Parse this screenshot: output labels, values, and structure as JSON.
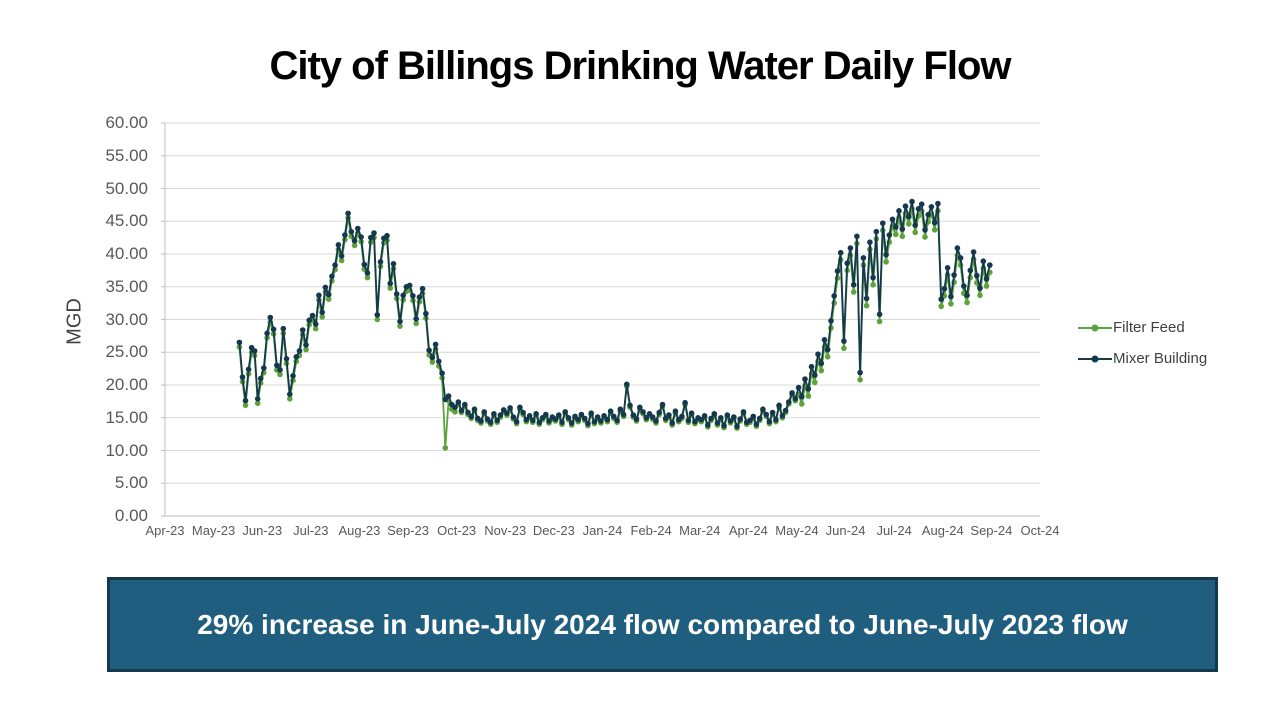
{
  "title": "City of Billings Drinking Water Daily Flow",
  "banner": {
    "text": "29% increase in June-July 2024 flow compared to June-July 2023 flow",
    "bg": "#1F5E7E",
    "border": "#123A4C",
    "text_color": "#FFFFFF"
  },
  "chart_data": {
    "type": "line",
    "title": "City of Billings Drinking Water Daily Flow",
    "xlabel": "",
    "ylabel": "MGD",
    "y_min": 0,
    "y_max": 60,
    "y_step": 5,
    "ylim": [
      0,
      60
    ],
    "grid": true,
    "legend_position": "right",
    "y_tick_labels": [
      "0.00",
      "5.00",
      "10.00",
      "15.00",
      "20.00",
      "25.00",
      "30.00",
      "35.00",
      "40.00",
      "45.00",
      "50.00",
      "55.00",
      "60.00"
    ],
    "x_tick_labels": [
      "Apr-23",
      "May-23",
      "Jun-23",
      "Jul-23",
      "Aug-23",
      "Sep-23",
      "Oct-23",
      "Nov-23",
      "Dec-23",
      "Jan-24",
      "Feb-24",
      "Mar-24",
      "Apr-24",
      "May-24",
      "Jun-24",
      "Jul-24",
      "Aug-24",
      "Sep-24",
      "Oct-24"
    ],
    "colors": {
      "grid": "#D9D9D9",
      "axis": "#BFBFBF",
      "tick_label": "#595959",
      "axis_title": "#404040",
      "title": "#000000"
    },
    "series": [
      {
        "name": "Filter Feed",
        "color": "#5BA33A",
        "marker": "circle",
        "data_key": "filter_feed"
      },
      {
        "name": "Mixer Building",
        "color": "#16384F",
        "marker": "circle",
        "data_key": "mixer_building"
      }
    ],
    "x_unit": "daily values sampled ~every 2 days, positioned within labeled month",
    "monthly_data": [
      {
        "month": "May-23",
        "f0": 0.5,
        "filter_feed": [
          25.8,
          20.5,
          16.9,
          21.7,
          25.0,
          24.5,
          17.2,
          20.3
        ],
        "mixer_building": [
          26.5,
          21.2,
          17.6,
          22.4,
          25.7,
          25.2,
          17.9,
          21.0
        ]
      },
      {
        "month": "Jun-23",
        "filter_feed": [
          21.9,
          27.2,
          29.6,
          27.8,
          22.3,
          21.6,
          27.9,
          23.3,
          17.9,
          20.7,
          23.6,
          24.5,
          27.7,
          25.4,
          29.2
        ],
        "mixer_building": [
          22.6,
          27.9,
          30.3,
          28.5,
          23.0,
          22.3,
          28.6,
          24.0,
          18.6,
          21.4,
          24.3,
          25.2,
          28.4,
          26.1,
          29.9
        ]
      },
      {
        "month": "Jul-23",
        "filter_feed": [
          29.9,
          28.6,
          33.0,
          30.4,
          34.2,
          33.1,
          35.9,
          37.6,
          40.7,
          39.0,
          42.2,
          45.5,
          42.7,
          41.3,
          43.2
        ],
        "mixer_building": [
          30.6,
          29.3,
          33.7,
          31.1,
          34.9,
          33.8,
          36.6,
          38.3,
          41.4,
          39.7,
          42.9,
          46.2,
          43.4,
          42.0,
          43.9
        ]
      },
      {
        "month": "Aug-23",
        "filter_feed": [
          41.9,
          37.7,
          36.4,
          41.8,
          42.5,
          30.0,
          38.1,
          41.7,
          42.1,
          34.8,
          37.8,
          33.2,
          29.0,
          33.0,
          34.3
        ],
        "mixer_building": [
          42.6,
          38.4,
          37.1,
          42.5,
          43.2,
          30.7,
          38.8,
          42.4,
          42.8,
          35.5,
          38.5,
          33.9,
          29.7,
          33.7,
          35.0
        ]
      },
      {
        "month": "Sep-23",
        "filter_feed": [
          34.5,
          32.9,
          29.4,
          32.7,
          34.0,
          30.2,
          24.6,
          23.5,
          25.5,
          22.9,
          21.1,
          10.4,
          17.6,
          16.3,
          15.9
        ],
        "mixer_building": [
          35.2,
          33.6,
          30.1,
          33.4,
          34.7,
          30.9,
          25.3,
          24.2,
          26.2,
          23.6,
          21.8,
          17.8,
          18.3,
          17.0,
          16.6
        ]
      },
      {
        "month": "Oct-23",
        "filter_feed": [
          17.1,
          15.8,
          16.7,
          15.5,
          14.9,
          16.0,
          14.6,
          14.2,
          15.6,
          14.5,
          14.0,
          15.3,
          14.3,
          15.1,
          15.9
        ],
        "mixer_building": [
          17.4,
          16.1,
          17.0,
          15.8,
          15.2,
          16.3,
          14.9,
          14.5,
          15.9,
          14.8,
          14.3,
          15.6,
          14.6,
          15.4,
          16.2
        ]
      },
      {
        "month": "Nov-23",
        "filter_feed": [
          15.4,
          16.2,
          14.8,
          14.1,
          16.3,
          15.5,
          14.4,
          15.0,
          14.3,
          15.3,
          14.0,
          14.7,
          15.2,
          14.2,
          14.8
        ],
        "mixer_building": [
          15.7,
          16.5,
          15.1,
          14.4,
          16.6,
          15.8,
          14.7,
          15.3,
          14.6,
          15.6,
          14.3,
          15.0,
          15.5,
          14.5,
          15.1
        ]
      },
      {
        "month": "Dec-23",
        "filter_feed": [
          14.5,
          15.1,
          14.0,
          15.6,
          14.7,
          13.9,
          14.9,
          14.4,
          15.2,
          14.6,
          13.8,
          15.4,
          14.1,
          14.8,
          14.2
        ],
        "mixer_building": [
          14.8,
          15.4,
          14.3,
          15.9,
          15.0,
          14.2,
          15.2,
          14.7,
          15.5,
          14.9,
          14.1,
          15.7,
          14.4,
          15.1,
          14.5
        ]
      },
      {
        "month": "Jan-24",
        "filter_feed": [
          15.0,
          14.4,
          15.7,
          14.9,
          14.3,
          16.0,
          15.2,
          19.8,
          16.6,
          15.1,
          14.5,
          16.3,
          15.6,
          14.7,
          15.3
        ],
        "mixer_building": [
          15.3,
          14.7,
          16.0,
          15.2,
          14.6,
          16.3,
          15.5,
          20.1,
          16.9,
          15.4,
          14.8,
          16.6,
          15.9,
          15.0,
          15.6
        ]
      },
      {
        "month": "Feb-24",
        "filter_feed": [
          14.8,
          14.2,
          15.5,
          16.7,
          14.6,
          15.1,
          13.9,
          15.7,
          14.4,
          14.9,
          17.0,
          14.3,
          15.4,
          14.1,
          14.7
        ],
        "mixer_building": [
          15.1,
          14.5,
          15.8,
          17.0,
          14.9,
          15.4,
          14.2,
          16.0,
          14.7,
          15.2,
          17.3,
          14.6,
          15.7,
          14.4,
          15.0
        ]
      },
      {
        "month": "Mar-24",
        "filter_feed": [
          14.4,
          15.0,
          13.6,
          14.6,
          15.3,
          13.9,
          14.7,
          13.5,
          15.1,
          14.2,
          14.8,
          13.4,
          14.5,
          15.6,
          14.0
        ],
        "mixer_building": [
          14.7,
          15.3,
          13.9,
          14.9,
          15.6,
          14.2,
          15.0,
          13.8,
          15.4,
          14.5,
          15.1,
          13.7,
          14.8,
          15.9,
          14.3
        ]
      },
      {
        "month": "Apr-24",
        "filter_feed": [
          14.3,
          14.9,
          13.7,
          14.6,
          16.0,
          15.2,
          14.1,
          15.5,
          14.4,
          16.6,
          15.0,
          15.8,
          17.1,
          18.5,
          17.6
        ],
        "mixer_building": [
          14.6,
          15.2,
          14.0,
          14.9,
          16.3,
          15.5,
          14.4,
          15.8,
          14.7,
          16.9,
          15.3,
          16.1,
          17.4,
          18.8,
          17.9
        ]
      },
      {
        "month": "May-24",
        "filter_feed": [
          18.5,
          17.1,
          19.8,
          18.3,
          21.7,
          20.4,
          23.6,
          22.2,
          25.8,
          24.3,
          28.7,
          32.5,
          36.3,
          39.1,
          25.6
        ],
        "mixer_building": [
          19.6,
          18.2,
          20.9,
          19.4,
          22.8,
          21.5,
          24.7,
          23.3,
          26.9,
          25.4,
          29.8,
          33.6,
          37.4,
          40.2,
          26.7
        ]
      },
      {
        "month": "Jun-24",
        "filter_feed": [
          37.5,
          39.8,
          34.2,
          41.6,
          20.8,
          38.3,
          32.1,
          40.7,
          35.3,
          42.3,
          29.7,
          43.6,
          38.8,
          41.8,
          44.2
        ],
        "mixer_building": [
          38.6,
          40.9,
          35.3,
          42.7,
          21.9,
          39.4,
          33.2,
          41.8,
          36.4,
          43.4,
          30.8,
          44.7,
          39.9,
          42.9,
          45.3
        ]
      },
      {
        "month": "Jul-24",
        "filter_feed": [
          43.0,
          45.5,
          42.7,
          46.2,
          44.6,
          46.9,
          43.3,
          45.8,
          46.5,
          42.6,
          44.9,
          46.1,
          43.7,
          46.6,
          32.0
        ],
        "mixer_building": [
          44.1,
          46.6,
          43.8,
          47.3,
          45.7,
          48.0,
          44.4,
          46.9,
          47.6,
          43.7,
          46.0,
          47.2,
          44.8,
          47.7,
          33.1
        ]
      },
      {
        "month": "Aug-24",
        "filter_feed": [
          33.6,
          36.8,
          32.4,
          35.7,
          39.8,
          38.3,
          34.0,
          32.6,
          36.4,
          39.2,
          35.6,
          33.7,
          37.8,
          35.1,
          37.2
        ],
        "mixer_building": [
          34.7,
          37.9,
          33.5,
          36.8,
          40.9,
          39.4,
          35.1,
          33.7,
          37.5,
          40.3,
          36.7,
          34.8,
          38.9,
          36.2,
          38.3
        ]
      }
    ]
  }
}
